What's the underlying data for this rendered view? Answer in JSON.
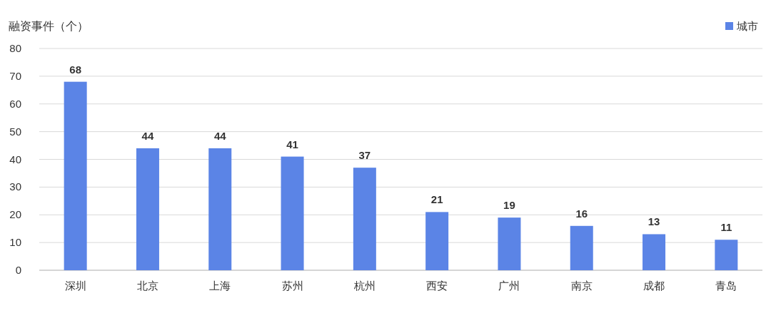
{
  "chart_data": {
    "type": "bar",
    "ylabel": "融资事件（个）",
    "categories": [
      "深圳",
      "北京",
      "上海",
      "苏州",
      "杭州",
      "西安",
      "广州",
      "南京",
      "成都",
      "青岛"
    ],
    "series": [
      {
        "name": "城市",
        "color": "#5b84e6",
        "values": [
          68,
          44,
          44,
          41,
          37,
          21,
          19,
          16,
          13,
          11
        ]
      }
    ],
    "ylim": [
      0,
      80
    ],
    "yticks": [
      0,
      10,
      20,
      30,
      40,
      50,
      60,
      70,
      80
    ],
    "grid": "y",
    "legend": "top right",
    "data_labels": true
  }
}
